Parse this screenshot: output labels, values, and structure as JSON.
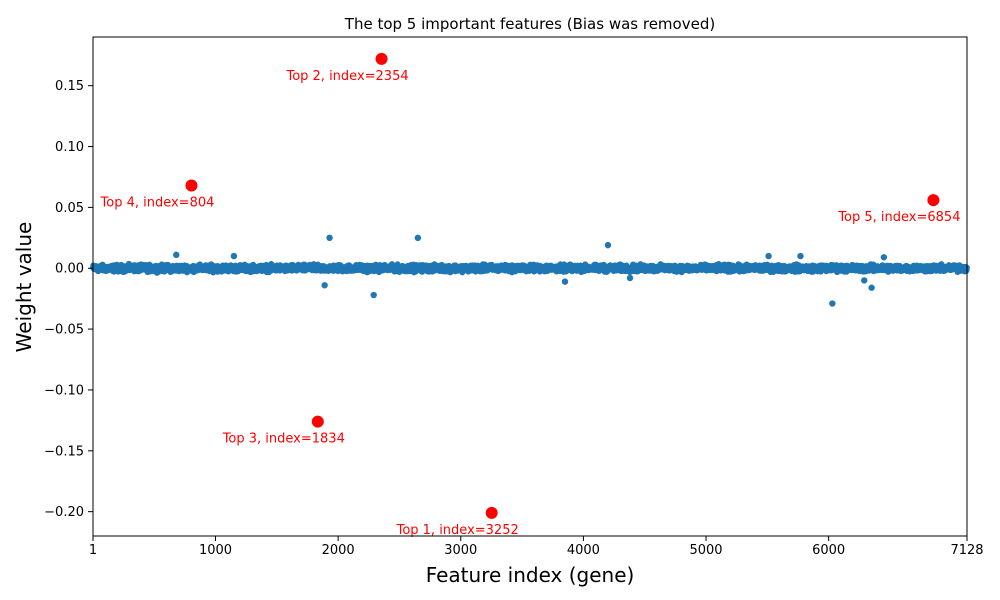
{
  "chart_data": {
    "type": "scatter",
    "title": "The top 5 important features (Bias was removed)",
    "xlabel": "Feature index (gene)",
    "ylabel": "Weight value",
    "xlim": [
      1,
      7128
    ],
    "ylim": [
      -0.22,
      0.19
    ],
    "xticks": [
      1,
      1000,
      2000,
      3000,
      4000,
      5000,
      6000,
      7128
    ],
    "yticks": [
      -0.2,
      -0.15,
      -0.1,
      -0.05,
      0.0,
      0.05,
      0.1,
      0.15
    ],
    "ytick_labels": [
      "−0.20",
      "−0.15",
      "−0.10",
      "−0.05",
      "0.00",
      "0.05",
      "0.10",
      "0.15"
    ],
    "grid": false,
    "colors": {
      "weights": "#1f77b4",
      "top": "#ff0000",
      "annotation": "#ff0000"
    },
    "band_noise": 0.004,
    "notable_points": [
      {
        "x": 680,
        "y": 0.011
      },
      {
        "x": 1150,
        "y": 0.01
      },
      {
        "x": 1930,
        "y": 0.025
      },
      {
        "x": 2650,
        "y": 0.025
      },
      {
        "x": 4200,
        "y": 0.019
      },
      {
        "x": 5510,
        "y": 0.01
      },
      {
        "x": 5770,
        "y": 0.01
      },
      {
        "x": 6450,
        "y": 0.009
      },
      {
        "x": 1890,
        "y": -0.014
      },
      {
        "x": 2290,
        "y": -0.022
      },
      {
        "x": 3850,
        "y": -0.011
      },
      {
        "x": 4380,
        "y": -0.008
      },
      {
        "x": 6030,
        "y": -0.029
      },
      {
        "x": 6290,
        "y": -0.01
      },
      {
        "x": 6350,
        "y": -0.016
      }
    ],
    "top_features": [
      {
        "rank": 1,
        "x": 3252,
        "y": -0.201,
        "label": "Top 1, index=3252"
      },
      {
        "rank": 2,
        "x": 2354,
        "y": 0.172,
        "label": "Top 2, index=2354"
      },
      {
        "rank": 3,
        "x": 1834,
        "y": -0.126,
        "label": "Top 3, index=1834"
      },
      {
        "rank": 4,
        "x": 804,
        "y": 0.068,
        "label": "Top 4, index=804"
      },
      {
        "rank": 5,
        "x": 6854,
        "y": 0.056,
        "label": "Top 5, index=6854"
      }
    ]
  }
}
